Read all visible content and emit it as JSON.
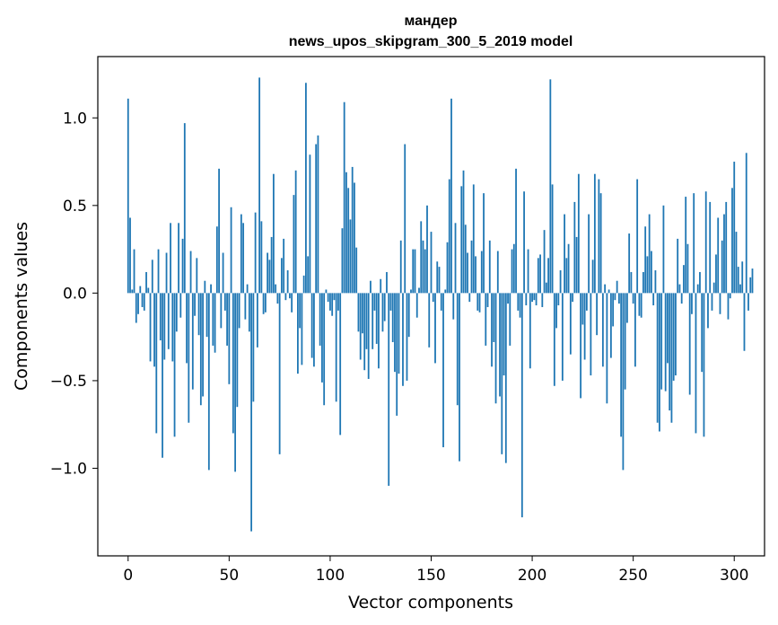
{
  "chart_data": {
    "type": "bar",
    "title": "мандер",
    "subtitle": "news_upos_skipgram_300_5_2019 model",
    "xlabel": "Vector components",
    "ylabel": "Components values",
    "xlim": [
      -15,
      315
    ],
    "ylim": [
      -1.5,
      1.35
    ],
    "xticks": [
      0,
      50,
      100,
      150,
      200,
      250,
      300
    ],
    "yticks": [
      -1.0,
      -0.5,
      0.0,
      0.5,
      1.0
    ],
    "ytick_labels": [
      "−1.0",
      "−0.5",
      "0.0",
      "0.5",
      "1.0"
    ],
    "bar_color": "#1f77b4",
    "series": [
      {
        "name": "components",
        "values": [
          1.11,
          0.43,
          0.02,
          0.25,
          -0.17,
          -0.12,
          0.04,
          -0.08,
          -0.1,
          0.12,
          0.03,
          -0.39,
          0.19,
          -0.42,
          -0.8,
          0.25,
          -0.27,
          -0.94,
          -0.38,
          0.23,
          -0.32,
          0.4,
          -0.39,
          -0.82,
          -0.22,
          0.4,
          -0.14,
          0.31,
          0.97,
          -0.4,
          -0.74,
          0.24,
          -0.55,
          -0.13,
          0.2,
          -0.24,
          -0.64,
          -0.59,
          0.07,
          -0.25,
          -1.01,
          0.05,
          -0.3,
          -0.34,
          0.38,
          0.71,
          -0.2,
          0.23,
          -0.1,
          -0.3,
          -0.52,
          0.49,
          -0.8,
          -1.02,
          -0.65,
          -0.2,
          0.45,
          0.4,
          -0.15,
          0.05,
          -0.22,
          -1.36,
          -0.62,
          0.46,
          -0.31,
          1.23,
          0.41,
          -0.12,
          -0.11,
          0.23,
          0.19,
          0.32,
          0.68,
          0.05,
          -0.06,
          -0.92,
          0.2,
          0.31,
          -0.04,
          0.13,
          -0.03,
          -0.11,
          0.56,
          0.7,
          -0.46,
          -0.2,
          -0.41,
          0.1,
          1.2,
          0.21,
          0.79,
          -0.37,
          -0.42,
          0.85,
          0.9,
          -0.3,
          -0.51,
          -0.64,
          0.02,
          -0.05,
          -0.1,
          -0.13,
          -0.04,
          -0.62,
          -0.1,
          -0.81,
          0.37,
          1.09,
          0.69,
          0.6,
          0.42,
          0.72,
          0.63,
          0.26,
          -0.22,
          -0.38,
          -0.23,
          -0.44,
          -0.32,
          -0.49,
          0.07,
          -0.32,
          -0.1,
          -0.29,
          -0.43,
          0.08,
          -0.22,
          -0.16,
          0.12,
          -1.1,
          -0.1,
          -0.28,
          -0.45,
          -0.7,
          -0.46,
          0.3,
          -0.53,
          0.85,
          -0.5,
          -0.25,
          0.02,
          0.25,
          0.25,
          -0.14,
          0.03,
          0.41,
          0.3,
          0.25,
          0.5,
          -0.31,
          0.35,
          -0.05,
          -0.4,
          0.18,
          0.15,
          -0.1,
          -0.88,
          0.02,
          0.29,
          0.65,
          1.11,
          -0.15,
          0.4,
          -0.64,
          -0.96,
          0.61,
          0.7,
          0.39,
          0.23,
          -0.05,
          0.3,
          0.62,
          0.21,
          -0.1,
          -0.11,
          0.24,
          0.57,
          -0.3,
          -0.08,
          0.3,
          -0.42,
          -0.28,
          -0.63,
          0.24,
          -0.59,
          -0.92,
          -0.47,
          -0.97,
          -0.06,
          -0.3,
          0.25,
          0.28,
          0.71,
          -0.1,
          -0.14,
          -1.28,
          0.58,
          -0.07,
          0.25,
          -0.43,
          -0.05,
          -0.04,
          -0.07,
          0.2,
          0.22,
          -0.08,
          0.36,
          0.06,
          0.2,
          1.22,
          0.62,
          -0.53,
          -0.2,
          -0.07,
          0.13,
          -0.5,
          0.45,
          0.2,
          0.28,
          -0.35,
          -0.05,
          0.52,
          0.32,
          0.68,
          -0.6,
          -0.18,
          -0.38,
          -0.1,
          0.45,
          -0.47,
          0.19,
          0.68,
          -0.24,
          0.65,
          0.57,
          -0.42,
          0.05,
          -0.63,
          0.02,
          -0.37,
          -0.19,
          -0.04,
          0.07,
          -0.06,
          -0.82,
          -1.01,
          -0.55,
          -0.17,
          0.34,
          0.12,
          -0.06,
          -0.42,
          0.65,
          -0.13,
          -0.14,
          0.12,
          0.38,
          0.21,
          0.45,
          0.24,
          -0.07,
          0.13,
          -0.74,
          -0.79,
          -0.55,
          0.5,
          -0.56,
          -0.4,
          -0.67,
          -0.74,
          -0.5,
          -0.47,
          0.31,
          0.05,
          -0.06,
          0.16,
          0.55,
          0.28,
          -0.58,
          -0.12,
          0.57,
          -0.8,
          0.05,
          0.12,
          -0.45,
          -0.82,
          0.58,
          -0.2,
          0.52,
          -0.1,
          0.06,
          0.22,
          0.43,
          -0.12,
          0.3,
          0.45,
          0.52,
          -0.15,
          -0.03,
          0.6,
          0.75,
          0.35,
          0.15,
          0.05,
          0.18,
          -0.33,
          0.8,
          -0.1,
          0.09,
          0.14
        ]
      }
    ]
  }
}
